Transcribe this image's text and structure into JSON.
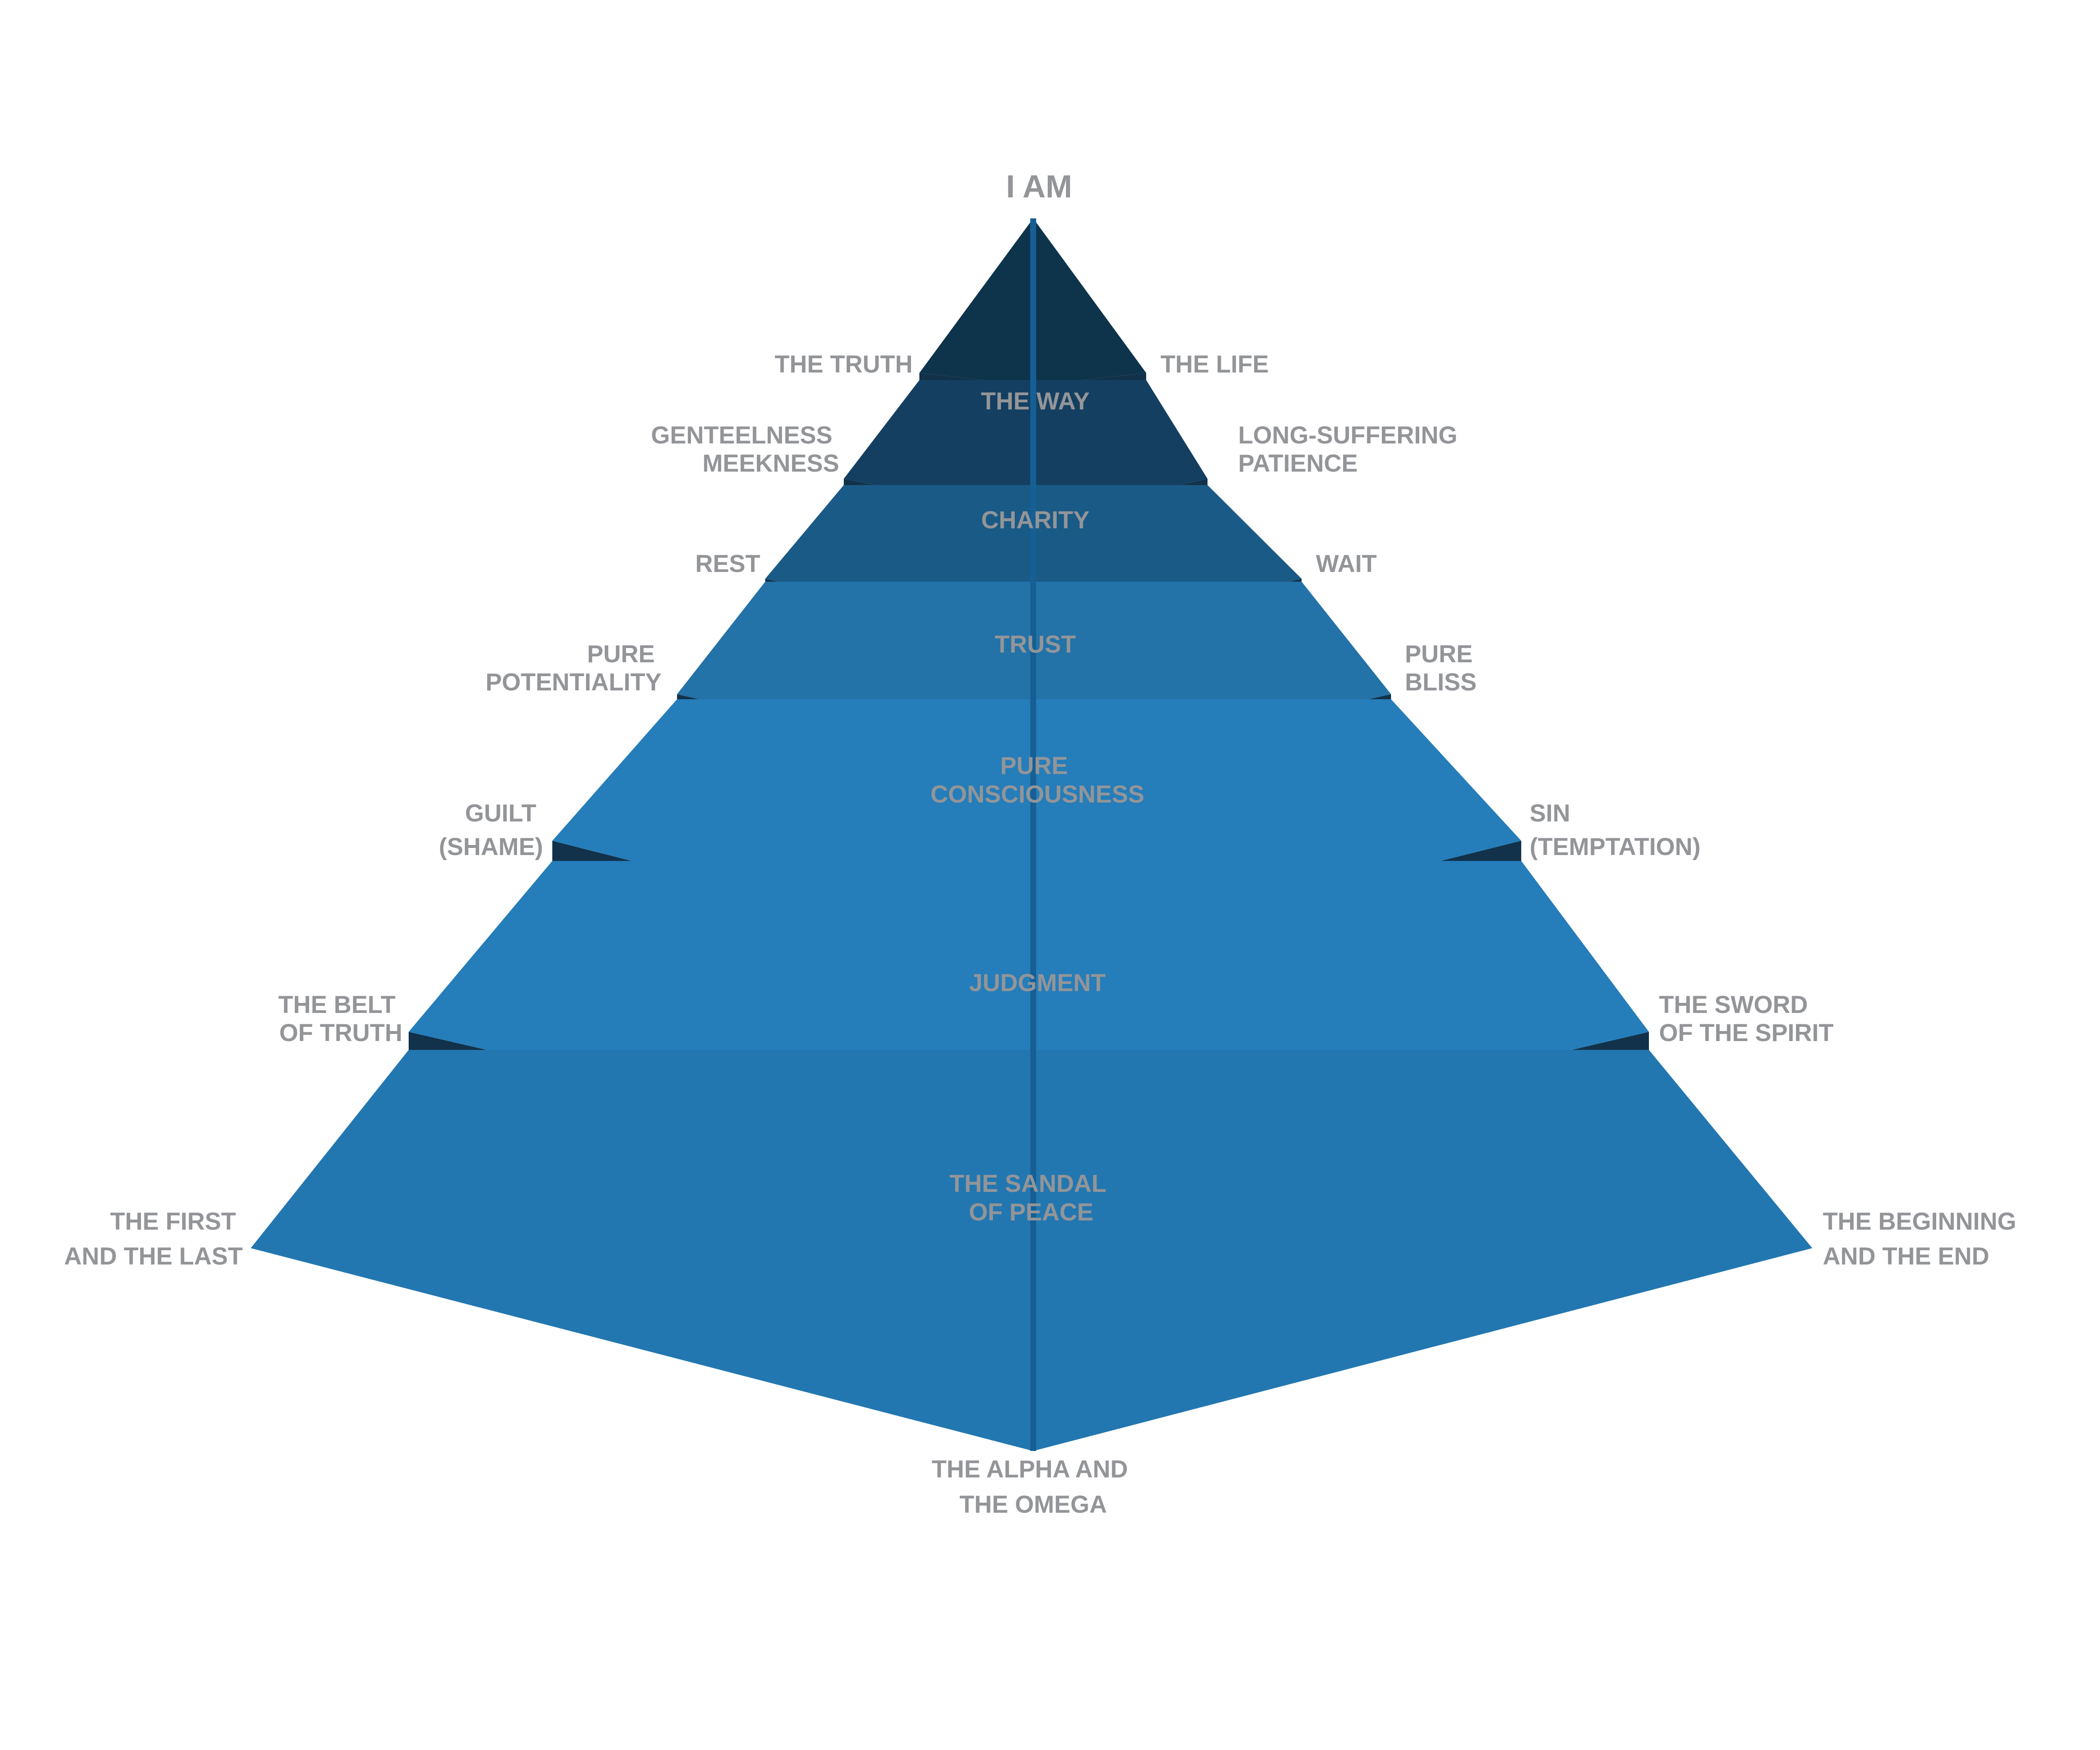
{
  "colors": {
    "background": "#ffffff",
    "label": "#939598",
    "gap": "#11324a",
    "seam": "#155f95",
    "tiers": [
      "#0e344c",
      "#143f61",
      "#1a5a86",
      "#2372a8",
      "#257dba",
      "#257dba",
      "#2377b0"
    ]
  },
  "apex_label": "I AM",
  "tiers": [
    {
      "center": [
        "THE WAY"
      ],
      "left": [
        "THE TRUTH"
      ],
      "right": [
        "THE LIFE"
      ]
    },
    {
      "center": [
        "CHARITY"
      ],
      "left": [
        "GENTEELNESS",
        "MEEKNESS"
      ],
      "right": [
        "LONG-SUFFERING",
        "PATIENCE"
      ]
    },
    {
      "center": [
        "TRUST"
      ],
      "left": [
        "REST"
      ],
      "right": [
        "WAIT"
      ]
    },
    {
      "center": [
        "PURE",
        "CONSCIOUSNESS"
      ],
      "left": [
        "PURE",
        "POTENTIALITY"
      ],
      "right": [
        "PURE",
        "BLISS"
      ]
    },
    {
      "center": [
        "JUDGMENT"
      ],
      "left": [
        "GUILT",
        "(SHAME)"
      ],
      "right": [
        "SIN",
        "(TEMPTATION)"
      ]
    },
    {
      "center": [
        "THE SANDAL",
        "OF PEACE"
      ],
      "left": [
        "THE BELT",
        "OF TRUTH"
      ],
      "right": [
        "THE SWORD",
        "OF THE SPIRIT"
      ]
    },
    {
      "center": [],
      "left": [
        "THE FIRST",
        "AND THE LAST"
      ],
      "right": [
        "THE BEGINNING",
        "AND THE END"
      ]
    }
  ],
  "bottom_label": [
    "THE ALPHA AND",
    "THE OMEGA"
  ]
}
